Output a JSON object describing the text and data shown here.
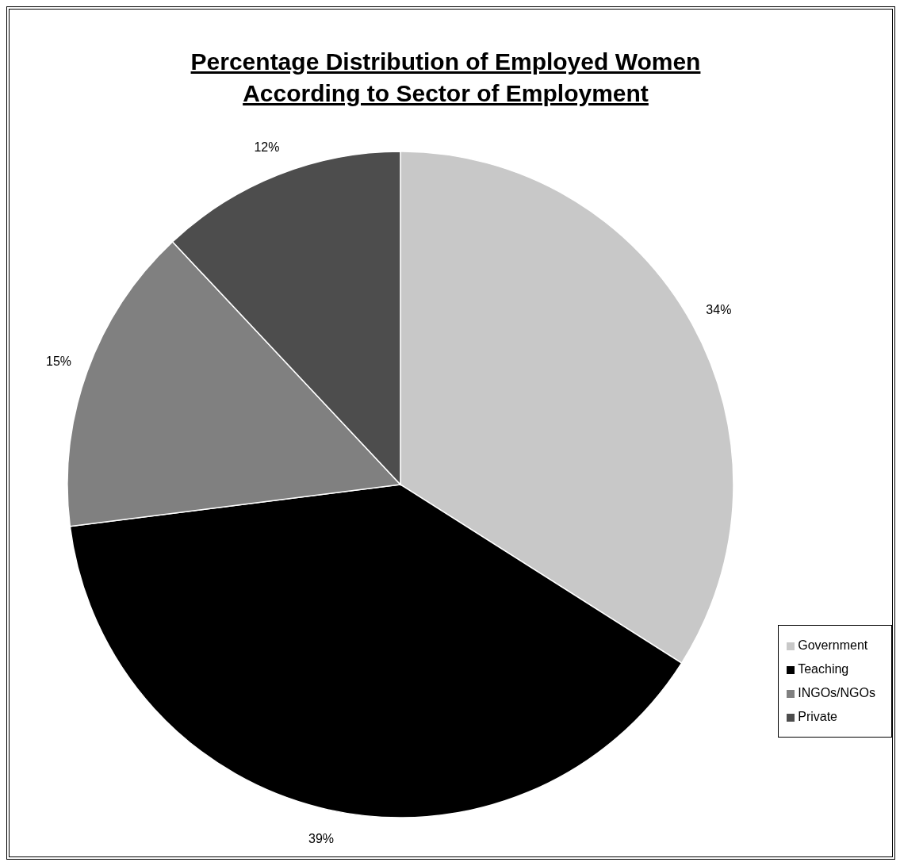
{
  "chart_data": {
    "type": "pie",
    "title": "Percentage Distribution of Employed Women According to Sector of Employment",
    "categories": [
      "Government",
      "Teaching",
      "INGOs/NGOs",
      "Private"
    ],
    "values": [
      34,
      39,
      15,
      12
    ],
    "value_labels": [
      "34%",
      "39%",
      "15%",
      "12%"
    ],
    "colors": [
      "#c8c8c8",
      "#000000",
      "#808080",
      "#4d4d4d"
    ],
    "legend": "bottom right"
  }
}
